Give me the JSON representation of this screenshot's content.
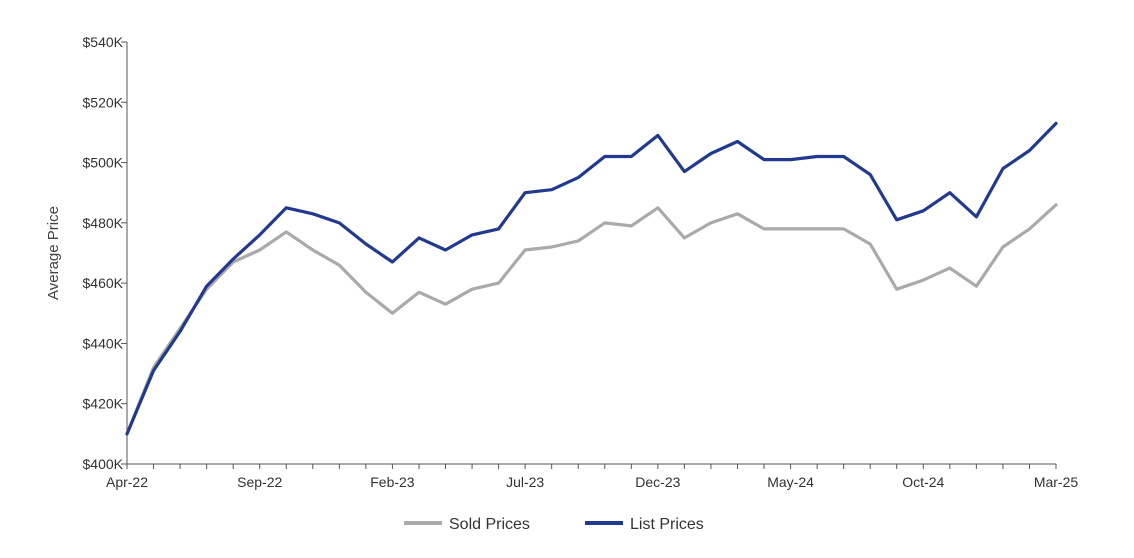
{
  "chart_data": {
    "type": "line",
    "ylabel": "Average Price",
    "xlabel": "",
    "ylim": [
      400,
      540
    ],
    "y_unit_prefix": "$",
    "y_unit_suffix": "K",
    "y_ticks": [
      400,
      420,
      440,
      460,
      480,
      500,
      520,
      540
    ],
    "y_tick_labels": [
      "$400K",
      "$420K",
      "$440K",
      "$460K",
      "$480K",
      "$500K",
      "$520K",
      "$540K"
    ],
    "x": [
      "Apr-22",
      "May-22",
      "Jun-22",
      "Jul-22",
      "Aug-22",
      "Sep-22",
      "Oct-22",
      "Nov-22",
      "Dec-22",
      "Jan-23",
      "Feb-23",
      "Mar-23",
      "Apr-23",
      "May-23",
      "Jun-23",
      "Jul-23",
      "Aug-23",
      "Sep-23",
      "Oct-23",
      "Nov-23",
      "Dec-23",
      "Jan-24",
      "Feb-24",
      "Mar-24",
      "Apr-24",
      "May-24",
      "Jun-24",
      "Jul-24",
      "Aug-24",
      "Sep-24",
      "Oct-24",
      "Nov-24",
      "Dec-24",
      "Jan-25",
      "Feb-25",
      "Mar-25"
    ],
    "x_tick_labels": [
      "Apr-22",
      "Sep-22",
      "Feb-23",
      "Jul-23",
      "Dec-23",
      "May-24",
      "Oct-24",
      "Mar-25"
    ],
    "series": [
      {
        "name": "Sold Prices",
        "color": "#aaaaaa",
        "values": [
          410,
          432,
          445,
          458,
          467,
          471,
          477,
          471,
          466,
          457,
          450,
          457,
          453,
          458,
          460,
          471,
          472,
          474,
          480,
          479,
          485,
          475,
          480,
          483,
          478,
          478,
          478,
          478,
          473,
          458,
          461,
          465,
          459,
          472,
          478,
          486
        ]
      },
      {
        "name": "List Prices",
        "color": "#213a8f",
        "values": [
          410,
          431,
          444,
          459,
          468,
          476,
          485,
          483,
          480,
          473,
          467,
          475,
          471,
          476,
          478,
          490,
          491,
          495,
          502,
          502,
          509,
          497,
          503,
          507,
          501,
          501,
          502,
          502,
          496,
          481,
          484,
          490,
          482,
          498,
          504,
          513
        ]
      }
    ],
    "legend_position": "bottom",
    "grid": false
  }
}
